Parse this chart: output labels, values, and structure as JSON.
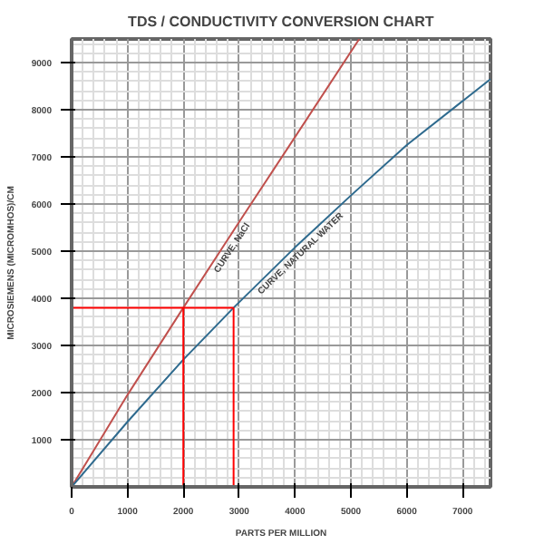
{
  "chart_data": {
    "type": "line",
    "title": "TDS / CONDUCTIVITY CONVERSION CHART",
    "xlabel": "PARTS PER MILLION",
    "ylabel": "MICROSIEMENS (MICROMHOS)/CM",
    "xlim": [
      0,
      7500
    ],
    "ylim": [
      0,
      9500
    ],
    "xticks": [
      0,
      1000,
      2000,
      3000,
      4000,
      5000,
      6000,
      7000
    ],
    "yticks": [
      1000,
      2000,
      3000,
      4000,
      5000,
      6000,
      7000,
      8000,
      9000
    ],
    "grid": true,
    "series": [
      {
        "color": "#c0504d",
        "x": [
          0,
          1000,
          2000,
          3000,
          4000,
          5150
        ],
        "values": [
          0,
          1950,
          3800,
          5620,
          7420,
          9500
        ]
      },
      {
        "color": "#2e6a8e",
        "x": [
          0,
          1000,
          2000,
          2900,
          4000,
          5000,
          6000,
          7500
        ],
        "values": [
          0,
          1380,
          2700,
          3800,
          5080,
          6180,
          7250,
          8650
        ]
      },
      {
        "color": "#ff0000",
        "x": [
          0,
          2900
        ],
        "values": [
          3800,
          3800
        ]
      },
      {
        "color": "#ff0000",
        "x": [
          2000,
          2000
        ],
        "values": [
          0,
          3800
        ]
      },
      {
        "color": "#ff0000",
        "x": [
          2900,
          2900
        ],
        "values": [
          0,
          3800
        ]
      }
    ],
    "annotations": [
      {
        "text": "CURVE, NaCl",
        "x": 2750,
        "y": 5165
      },
      {
        "text": "CURVE, NATURAL WATER",
        "x": 4000,
        "y": 5080
      }
    ]
  }
}
